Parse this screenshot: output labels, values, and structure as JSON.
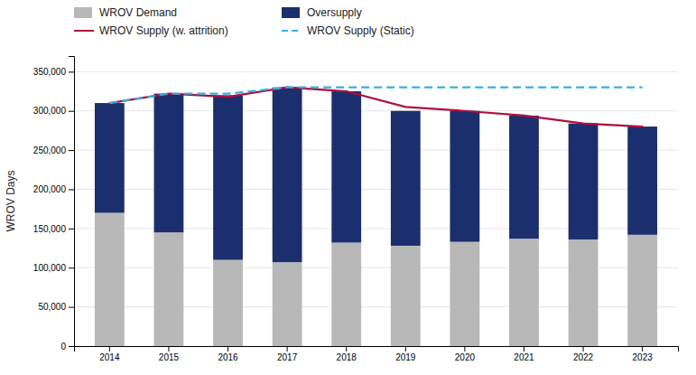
{
  "chart_data": {
    "type": "bar",
    "stacked": true,
    "grid": true,
    "legend": "top-left",
    "ylabel": "WROV Days",
    "categories": [
      "2014",
      "2015",
      "2016",
      "2017",
      "2018",
      "2019",
      "2020",
      "2021",
      "2022",
      "2023"
    ],
    "ylim": [
      0,
      370000
    ],
    "yticks": [
      0,
      {
        "value": 50000,
        "label": "50,000"
      },
      {
        "value": 100000,
        "label": "100,000"
      },
      {
        "value": 150000,
        "label": "150,000"
      },
      {
        "value": 200000,
        "label": "200,000"
      },
      {
        "value": 250000,
        "label": "250,000"
      },
      {
        "value": 300000,
        "label": "300,000"
      },
      {
        "value": 350000,
        "label": "350,000"
      }
    ],
    "series": [
      {
        "name": "WROV Demand",
        "type": "bar",
        "color": "#b8b8b8",
        "values": [
          170000,
          145000,
          110000,
          107000,
          132000,
          128000,
          133000,
          137000,
          136000,
          142000
        ]
      },
      {
        "name": "Oversupply",
        "type": "bar",
        "color": "#1b2e6e",
        "values": [
          140000,
          177000,
          210000,
          223000,
          193000,
          172000,
          167000,
          157000,
          148000,
          138000
        ]
      },
      {
        "name": "WROV Supply (w. attrition)",
        "type": "line",
        "line_style": "solid",
        "color": "#b0103c",
        "values": [
          310000,
          322000,
          318000,
          330000,
          325000,
          305000,
          300000,
          294000,
          284000,
          280000
        ]
      },
      {
        "name": "WROV Supply (Static)",
        "type": "line",
        "line_style": "dashed",
        "color": "#3aace0",
        "values": [
          310000,
          322000,
          322000,
          330000,
          330000,
          330000,
          330000,
          330000,
          330000,
          330000
        ]
      }
    ]
  }
}
